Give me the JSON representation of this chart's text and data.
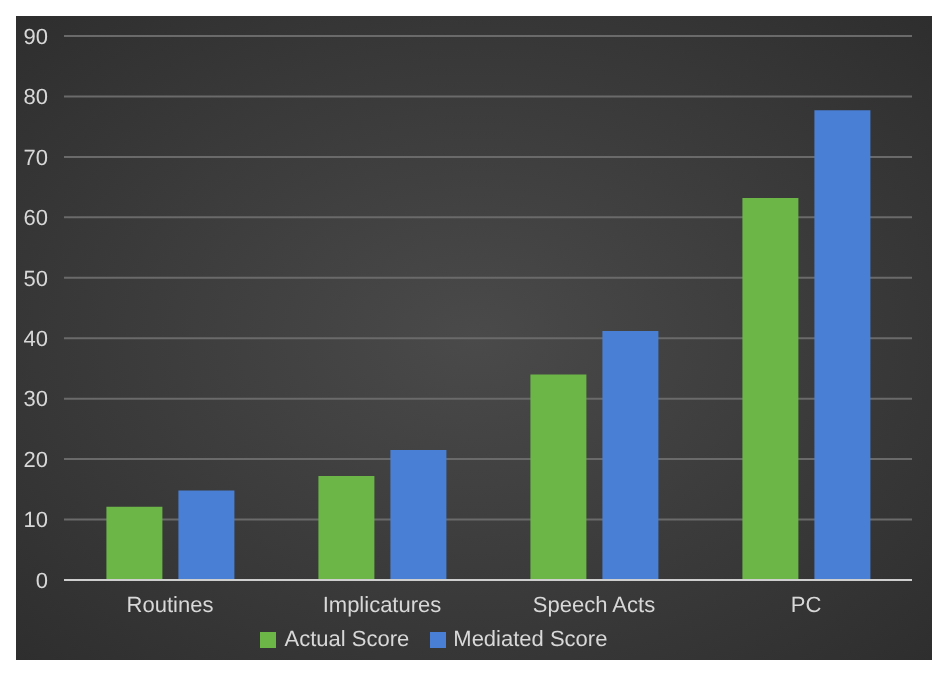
{
  "chart_data": {
    "type": "bar",
    "categories": [
      "Routines",
      "Implicatures",
      "Speech Acts",
      "PC"
    ],
    "series": [
      {
        "name": "Actual Score",
        "color": "#6cb547",
        "values": [
          12.1,
          17.2,
          34.0,
          63.2
        ]
      },
      {
        "name": "Mediated Score",
        "color": "#4a7fd6",
        "values": [
          14.8,
          21.5,
          41.2,
          77.7
        ]
      }
    ],
    "ylim": [
      0,
      90
    ],
    "yticks": [
      0,
      10,
      20,
      30,
      40,
      50,
      60,
      70,
      80,
      90
    ],
    "grid": "y",
    "legend": "bottom"
  }
}
